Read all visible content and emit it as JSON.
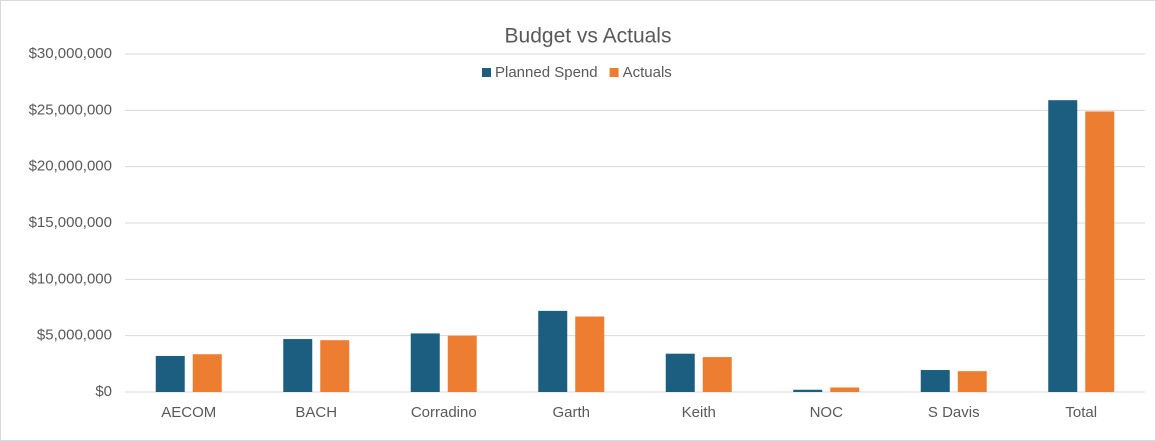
{
  "chart_data": {
    "type": "bar",
    "title": "Budget vs Actuals",
    "categories": [
      "AECOM",
      "BACH",
      "Corradino",
      "Garth",
      "Keith",
      "NOC",
      "S Davis",
      "Total"
    ],
    "series": [
      {
        "name": "Planned Spend",
        "color": "#1b5e80",
        "values": [
          3200000,
          4700000,
          5200000,
          7200000,
          3400000,
          200000,
          1950000,
          25900000
        ]
      },
      {
        "name": "Actuals",
        "color": "#ed7d31",
        "values": [
          3350000,
          4600000,
          5000000,
          6700000,
          3100000,
          400000,
          1850000,
          24900000
        ]
      }
    ],
    "ylim": [
      0,
      30000000
    ],
    "yticks": [
      {
        "value": 0,
        "label": "$0"
      },
      {
        "value": 5000000,
        "label": "$5,000,000"
      },
      {
        "value": 10000000,
        "label": "$10,000,000"
      },
      {
        "value": 15000000,
        "label": "$15,000,000"
      },
      {
        "value": 20000000,
        "label": "$20,000,000"
      },
      {
        "value": 25000000,
        "label": "$25,000,000"
      },
      {
        "value": 30000000,
        "label": "$30,000,000"
      }
    ],
    "grid": true,
    "legend": "top"
  }
}
